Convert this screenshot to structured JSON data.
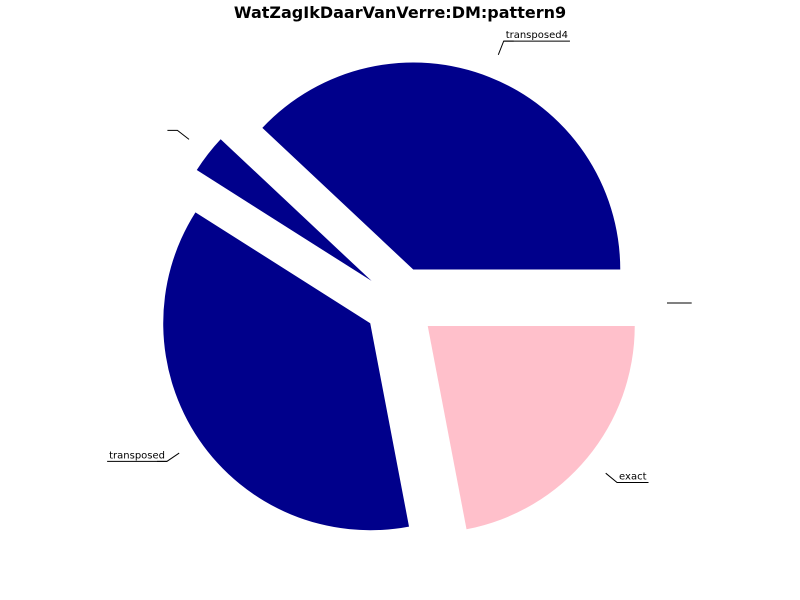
{
  "chart_data": {
    "type": "pie",
    "title": "WatZagIkDaarVanVerre:DM:pattern9",
    "start_angle_deg": 0,
    "direction": "counterclockwise",
    "slices": [
      {
        "label": "transposed4",
        "value": 38,
        "color": "#00008B",
        "explode": true
      },
      {
        "label": "",
        "value": 3,
        "color": "#00008B",
        "explode": true
      },
      {
        "label": "transposed",
        "value": 37,
        "color": "#00008B",
        "explode": true
      },
      {
        "label": "exact",
        "value": 22,
        "color": "#FFC0CB",
        "explode": true
      },
      {
        "label": "",
        "value": 0,
        "color": "#FFC0CB",
        "explode": true
      }
    ],
    "legend": "none"
  }
}
